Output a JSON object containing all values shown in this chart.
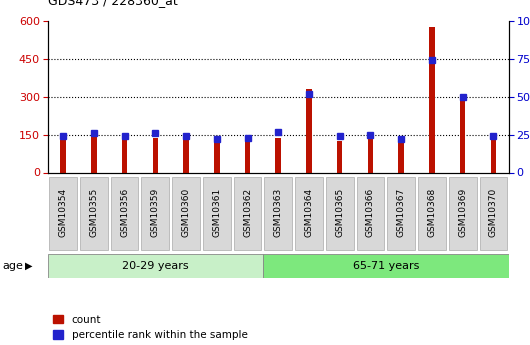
{
  "title": "GDS473 / 228360_at",
  "samples": [
    "GSM10354",
    "GSM10355",
    "GSM10356",
    "GSM10359",
    "GSM10360",
    "GSM10361",
    "GSM10362",
    "GSM10363",
    "GSM10364",
    "GSM10365",
    "GSM10366",
    "GSM10367",
    "GSM10368",
    "GSM10369",
    "GSM10370"
  ],
  "count": [
    130,
    145,
    140,
    135,
    135,
    128,
    138,
    135,
    330,
    125,
    140,
    128,
    575,
    295,
    128
  ],
  "percentile": [
    24,
    26,
    24,
    26,
    24,
    22,
    23,
    27,
    52,
    24,
    25,
    22,
    74,
    50,
    24
  ],
  "groups": [
    {
      "label": "20-29 years",
      "start": 0,
      "end": 7,
      "color": "#c8f0c8"
    },
    {
      "label": "65-71 years",
      "start": 7,
      "end": 15,
      "color": "#7de87d"
    }
  ],
  "left_axis_color": "#cc0000",
  "right_axis_color": "#0000cc",
  "bar_color_red": "#bb1100",
  "bar_color_blue": "#2222cc",
  "ylim_left": [
    0,
    600
  ],
  "ylim_right": [
    0,
    100
  ],
  "yticks_left": [
    0,
    150,
    300,
    450,
    600
  ],
  "yticks_right": [
    0,
    25,
    50,
    75,
    100
  ],
  "background_color": "#ffffff",
  "ticklabel_bg": "#d8d8d8",
  "age_label": "age",
  "legend_count": "count",
  "legend_pct": "percentile rank within the sample",
  "bar_width": 0.18
}
